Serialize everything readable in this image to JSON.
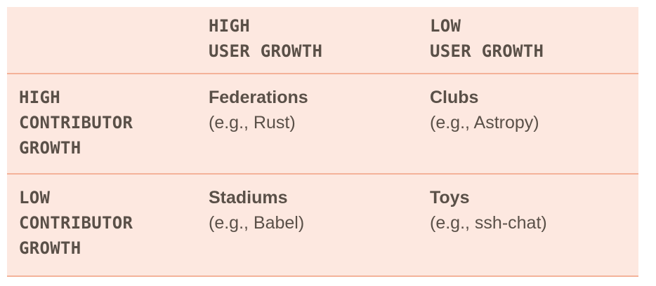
{
  "header": {
    "corner": "",
    "col_high_user_growth": "HIGH\nUSER GROWTH",
    "col_low_user_growth": "LOW\nUSER GROWTH"
  },
  "rows": [
    {
      "label": "HIGH\nCONTRIBUTOR\nGROWTH",
      "high_user": {
        "title": "Federations",
        "example": "(e.g., Rust)"
      },
      "low_user": {
        "title": "Clubs",
        "example": "(e.g., Astropy)"
      }
    },
    {
      "label": "LOW\nCONTRIBUTOR\nGROWTH",
      "high_user": {
        "title": "Stadiums",
        "example": "(e.g., Babel)"
      },
      "low_user": {
        "title": "Toys",
        "example": "(e.g., ssh-chat)"
      }
    }
  ],
  "colors": {
    "background": "#fde8e0",
    "divider": "#f4b299",
    "text": "#5a5048"
  }
}
